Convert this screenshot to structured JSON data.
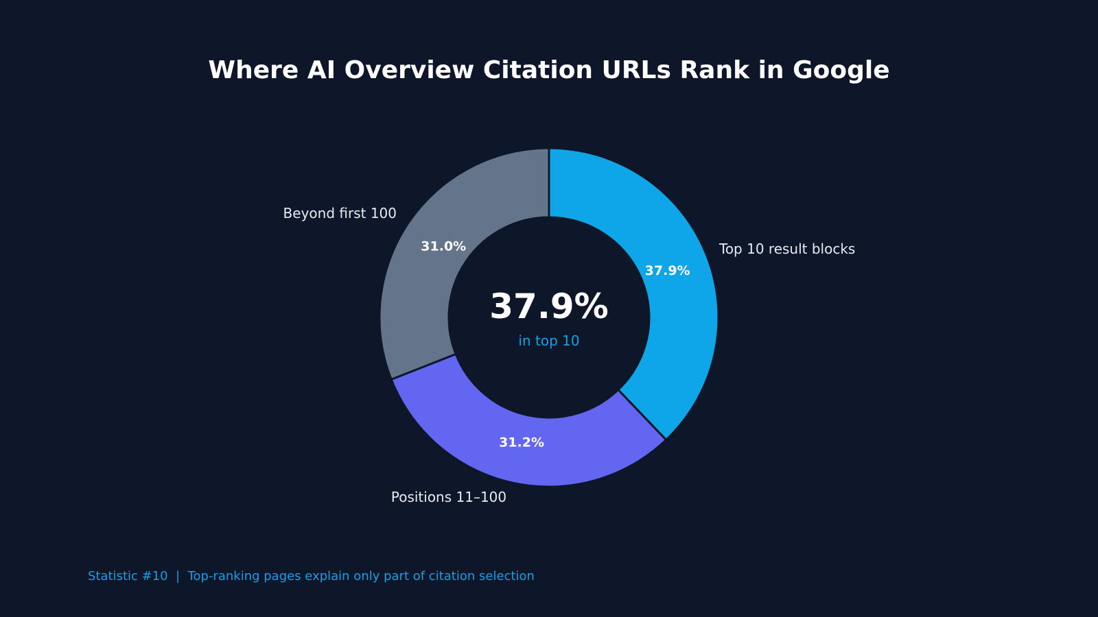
{
  "theme": {
    "background": "#0e1729",
    "separator": "#0e1729",
    "accent": "#14a0e6"
  },
  "chart_data": {
    "type": "pie",
    "title": "Where AI Overview Citation URLs Rank in Google",
    "donut": true,
    "slices": [
      {
        "label": "Top 10 result blocks",
        "value": 37.9,
        "value_label": "37.9%",
        "color": "#0ea5e9"
      },
      {
        "label": "Positions 11–100",
        "value": 31.2,
        "value_label": "31.2%",
        "color": "#6366f1"
      },
      {
        "label": "Beyond first 100",
        "value": 31.0,
        "value_label": "31.0%",
        "color": "#64748b"
      }
    ],
    "center": {
      "value": "37.9%",
      "caption": "in top 10"
    }
  },
  "footer": {
    "text": "Statistic #10  |  Top-ranking pages explain only part of citation selection"
  }
}
